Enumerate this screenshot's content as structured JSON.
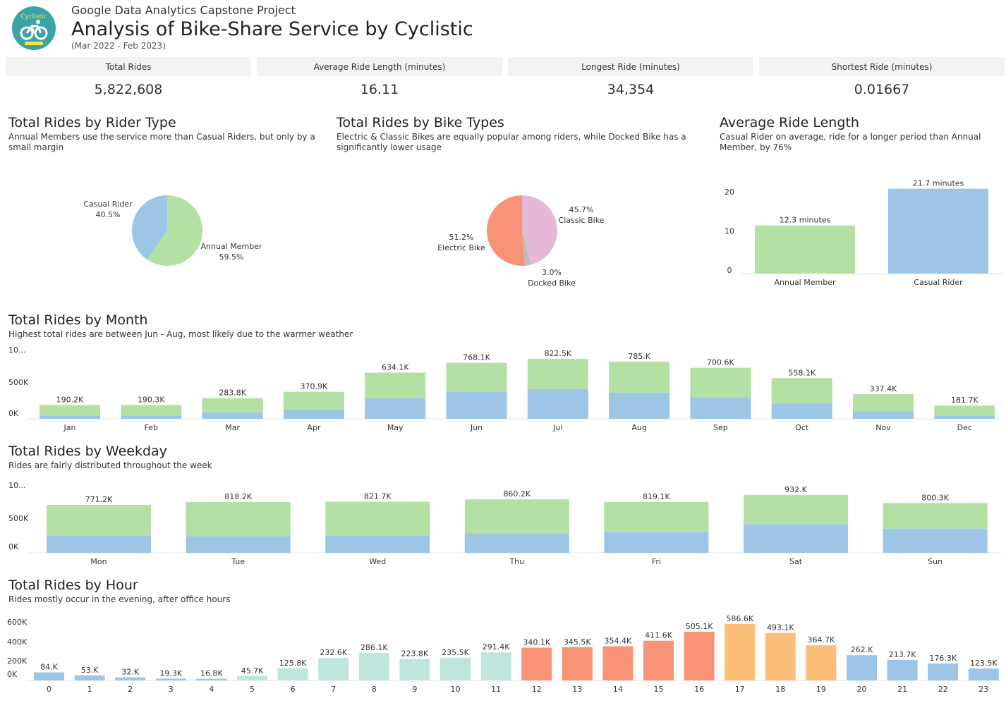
{
  "header": {
    "supertitle": "Google Data Analytics Capstone Project",
    "title": "Analysis of Bike-Share Service by Cyclistic",
    "period": "(Mar 2022 - Feb 2023)",
    "logo_text": "Cyclistic"
  },
  "kpis": [
    {
      "label": "Total Rides",
      "value": "5,822,608"
    },
    {
      "label": "Average Ride Length (minutes)",
      "value": "16.11"
    },
    {
      "label": "Longest Ride (minutes)",
      "value": "34,354"
    },
    {
      "label": "Shortest Ride (minutes)",
      "value": "0.01667"
    }
  ],
  "colors": {
    "member": "#b4e0a4",
    "casual": "#9cc5e6",
    "electric": "#f89378",
    "classic": "#e6b8d6",
    "docked": "#bdbdbd",
    "hour_night": "#9cc5e6",
    "hour_morning": "#bfe6dc",
    "hour_midday": "#f89378",
    "hour_evening": "#fbbf78"
  },
  "sections": {
    "rider_type": {
      "title": "Total Rides by Rider Type",
      "subtitle": "Annual Members use the service more than Casual Riders, but only by a small margin"
    },
    "bike_types": {
      "title": "Total Rides by Bike Types",
      "subtitle": "Electric & Classic Bikes are equally popular among riders, while Docked Bike has a significantly lower usage"
    },
    "avg_length": {
      "title": "Average Ride Length",
      "subtitle": "Casual Rider on average, ride for a longer period than Annual Member, by 76%"
    },
    "month": {
      "title": "Total Rides by Month",
      "subtitle": "Highest total rides are between Jun - Aug, most likely due to the warmer weather"
    },
    "weekday": {
      "title": "Total Rides by Weekday",
      "subtitle": "Rides are fairly distributed throughout the week"
    },
    "hour": {
      "title": "Total Rides by Hour",
      "subtitle": "Rides mostly occur in the evening, after office hours"
    }
  },
  "chart_data": [
    {
      "id": "rider_type",
      "type": "pie",
      "slices": [
        {
          "label": "Casual Rider",
          "pct_label": "40.5%",
          "value": 40.5
        },
        {
          "label": "Annual Member",
          "pct_label": "59.5%",
          "value": 59.5
        }
      ]
    },
    {
      "id": "bike_types",
      "type": "pie",
      "slices": [
        {
          "label": "Classic Bike",
          "pct_label": "45.7%",
          "value": 45.7
        },
        {
          "label": "Docked Bike",
          "pct_label": "3.0%",
          "value": 3.0
        },
        {
          "label": "Electric Bike",
          "pct_label": "51.2%",
          "value": 51.2
        }
      ]
    },
    {
      "id": "avg_length",
      "type": "bar",
      "categories": [
        "Annual Member",
        "Casual Rider"
      ],
      "values": [
        12.3,
        21.7
      ],
      "labels": [
        "12.3 minutes",
        "21.7 minutes"
      ],
      "yticks": [
        "0",
        "10",
        "20"
      ],
      "ylim": [
        0,
        22
      ]
    },
    {
      "id": "month",
      "type": "bar",
      "stacked": true,
      "categories": [
        "Jan",
        "Feb",
        "Mar",
        "Apr",
        "May",
        "Jun",
        "Jul",
        "Aug",
        "Sep",
        "Oct",
        "Nov",
        "Dec"
      ],
      "totals": [
        190.2,
        190.3,
        283.8,
        370.9,
        634.1,
        768.1,
        822.5,
        785.0,
        700.6,
        558.1,
        337.4,
        181.7
      ],
      "casual": [
        40,
        43,
        90,
        126,
        280,
        370,
        406,
        359,
        297,
        208,
        101,
        45
      ],
      "labels": [
        "190.2K",
        "190.3K",
        "283.8K",
        "370.9K",
        "634.1K",
        "768.1K",
        "822.5K",
        "785.K",
        "700.6K",
        "558.1K",
        "337.4K",
        "181.7K"
      ],
      "yticks": [
        "0K",
        "500K",
        "10..."
      ],
      "ylim": [
        0,
        1000
      ]
    },
    {
      "id": "weekday",
      "type": "bar",
      "stacked": true,
      "categories": [
        "Mon",
        "Tue",
        "Wed",
        "Thu",
        "Fri",
        "Sat",
        "Sun"
      ],
      "totals": [
        771.2,
        818.2,
        821.7,
        860.2,
        819.1,
        932.0,
        800.3
      ],
      "casual": [
        276,
        265,
        274,
        311,
        332,
        462,
        389
      ],
      "labels": [
        "771.2K",
        "818.2K",
        "821.7K",
        "860.2K",
        "819.1K",
        "932.K",
        "800.3K"
      ],
      "yticks": [
        "0K",
        "500K",
        "10..."
      ],
      "ylim": [
        0,
        1000
      ]
    },
    {
      "id": "hour",
      "type": "bar",
      "categories": [
        "0",
        "1",
        "2",
        "3",
        "4",
        "5",
        "6",
        "7",
        "8",
        "9",
        "10",
        "11",
        "12",
        "13",
        "14",
        "15",
        "16",
        "17",
        "18",
        "19",
        "20",
        "21",
        "22",
        "23"
      ],
      "values": [
        84.0,
        53.0,
        32.0,
        19.3,
        16.8,
        45.7,
        125.8,
        232.6,
        286.1,
        223.8,
        235.5,
        291.4,
        340.1,
        345.5,
        354.4,
        411.6,
        505.1,
        586.6,
        493.1,
        364.7,
        262.0,
        213.7,
        176.3,
        123.5
      ],
      "labels": [
        "84.K",
        "53.K",
        "32.K",
        "19.3K",
        "16.8K",
        "45.7K",
        "125.8K",
        "232.6K",
        "286.1K",
        "223.8K",
        "235.5K",
        "291.4K",
        "340.1K",
        "345.5K",
        "354.4K",
        "411.6K",
        "505.1K",
        "586.6K",
        "493.1K",
        "364.7K",
        "262.K",
        "213.7K",
        "176.3K",
        "123.5K"
      ],
      "color_groups": [
        "night",
        "night",
        "night",
        "night",
        "night",
        "morning",
        "morning",
        "morning",
        "morning",
        "morning",
        "morning",
        "morning",
        "midday",
        "midday",
        "midday",
        "midday",
        "midday",
        "evening",
        "evening",
        "evening",
        "night",
        "night",
        "night",
        "night"
      ],
      "yticks": [
        "0K",
        "200K",
        "400K",
        "600K"
      ],
      "ylim": [
        0,
        600
      ]
    }
  ]
}
